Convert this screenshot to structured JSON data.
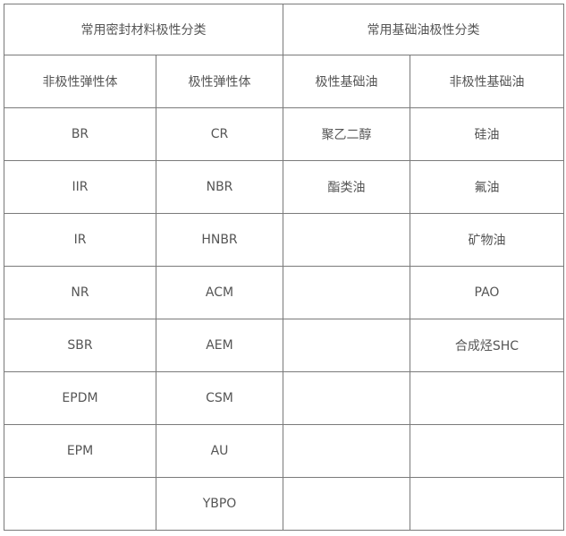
{
  "header": {
    "group_left": "常用密封材料极性分类",
    "group_right": "常用基础油极性分类"
  },
  "columns": [
    "非极性弹性体",
    "极性弹性体",
    "极性基础油",
    "非极性基础油"
  ],
  "rows": [
    [
      "BR",
      "CR",
      "聚乙二醇",
      "硅油"
    ],
    [
      "IIR",
      "NBR",
      "酯类油",
      "氟油"
    ],
    [
      "IR",
      "HNBR",
      "",
      "矿物油"
    ],
    [
      "NR",
      "ACM",
      "",
      "PAO"
    ],
    [
      "SBR",
      "AEM",
      "",
      "合成烃SHC"
    ],
    [
      "EPDM",
      "CSM",
      "",
      ""
    ],
    [
      "EPM",
      "AU",
      "",
      ""
    ],
    [
      "",
      "YBPO",
      "",
      ""
    ]
  ]
}
